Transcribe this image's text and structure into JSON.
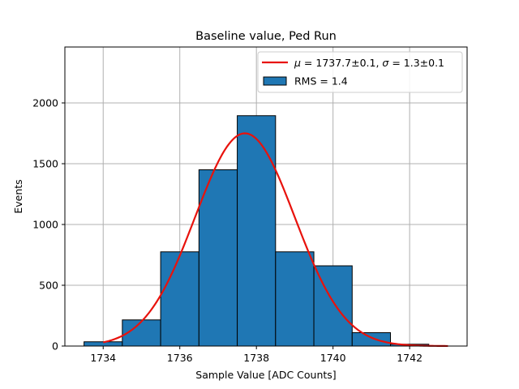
{
  "chart_data": {
    "type": "bar",
    "title": "Baseline value, Ped Run",
    "xlabel": "Sample Value [ADC Counts]",
    "ylabel": "Events",
    "xlim": [
      1733.0,
      1743.5
    ],
    "ylim": [
      0,
      2460
    ],
    "xticks": [
      1734,
      1736,
      1738,
      1740,
      1742
    ],
    "yticks": [
      0,
      500,
      1000,
      1500,
      2000
    ],
    "grid": true,
    "legend_position": "top-right",
    "bin_width": 1.0,
    "series": [
      {
        "name": "RMS = 1.4",
        "type": "histogram",
        "color": "#1f77b4",
        "edgecolor": "#000000",
        "bins": [
          {
            "center": 1734,
            "count": 35
          },
          {
            "center": 1735,
            "count": 215
          },
          {
            "center": 1736,
            "count": 775
          },
          {
            "center": 1737,
            "count": 1450
          },
          {
            "center": 1738,
            "count": 1895
          },
          {
            "center": 1739,
            "count": 775
          },
          {
            "center": 1740,
            "count": 660
          },
          {
            "center": 1741,
            "count": 110
          },
          {
            "center": 1742,
            "count": 15
          }
        ]
      },
      {
        "name_prefix_mu": "μ",
        "name_mid": " = 1737.7±0.1, ",
        "name_prefix_sigma": "σ",
        "name_tail": " = 1.3±0.1",
        "type": "gaussian-fit",
        "color": "#e8120c",
        "mu": 1737.7,
        "sigma": 1.3,
        "amplitude": 1750,
        "x_range": [
          1734.0,
          1743.0
        ]
      }
    ]
  }
}
